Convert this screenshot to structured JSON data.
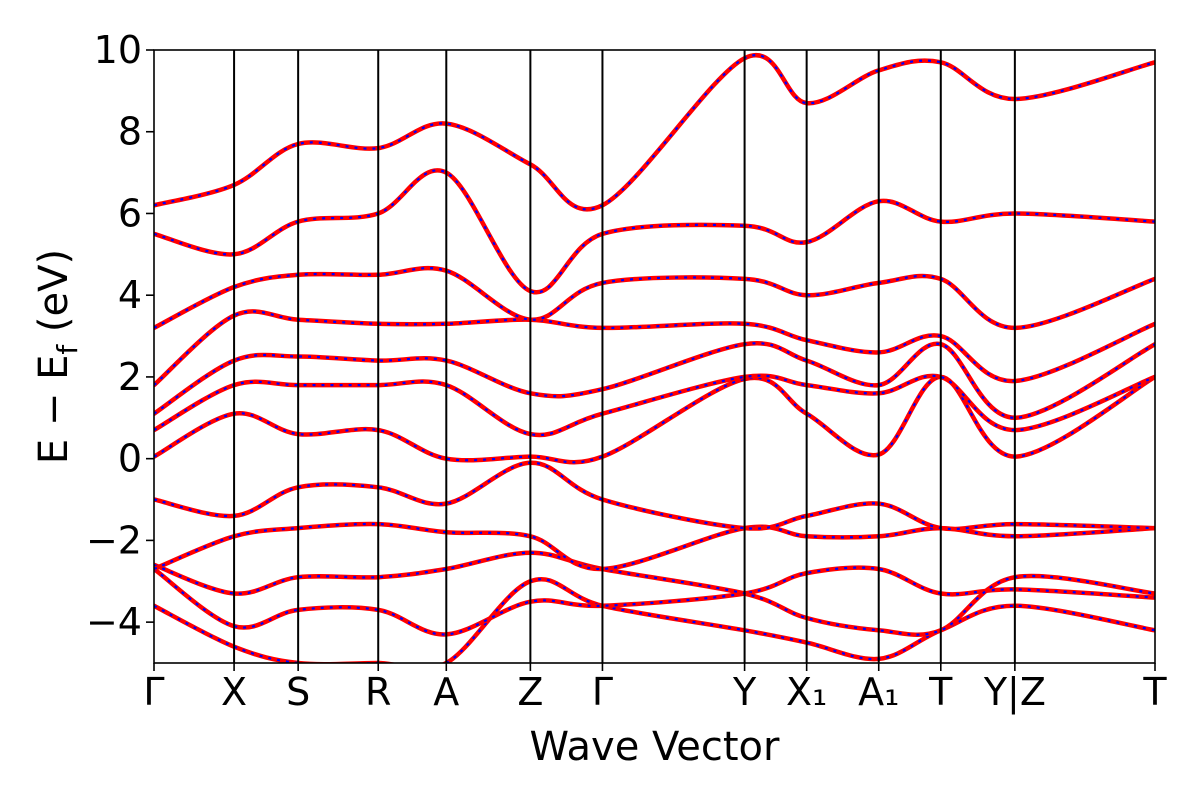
{
  "chart_data": {
    "type": "line",
    "title": "",
    "xlabel": "Wave Vector",
    "ylabel": "E − E_f (eV)",
    "ylabel_parts": {
      "base": "E − E",
      "sub": "f",
      "unit": " (eV)"
    },
    "ylim": [
      -5,
      10
    ],
    "yticks": [
      -4,
      -2,
      0,
      2,
      4,
      6,
      8,
      10
    ],
    "ytick_labels": [
      "−4",
      "−2",
      "0",
      "2",
      "4",
      "6",
      "8",
      "10"
    ],
    "grid": false,
    "high_symmetry_points": [
      {
        "label": "Γ",
        "x": 0.0
      },
      {
        "label": "X",
        "x": 0.4
      },
      {
        "label": "S",
        "x": 0.72
      },
      {
        "label": "R",
        "x": 1.12
      },
      {
        "label": "A",
        "x": 1.46
      },
      {
        "label": "Z",
        "x": 1.88
      },
      {
        "label": "Γ",
        "x": 2.24
      },
      {
        "label": "Y",
        "x": 2.95
      },
      {
        "label": "X₁",
        "x": 3.26
      },
      {
        "label": "A₁",
        "x": 3.62
      },
      {
        "label": "T",
        "x": 3.93
      },
      {
        "label": "Y|Z",
        "x": 4.3
      },
      {
        "label": "T",
        "x": 5.0
      }
    ],
    "series": [
      {
        "style": "solid",
        "color": "#ff0000",
        "bands": [
          {
            "x": [
              0,
              0.4,
              0.72,
              1.12,
              1.46,
              1.88,
              2.24,
              2.95,
              3.26,
              3.62,
              3.93,
              4.3,
              5.0
            ],
            "y": [
              -3.6,
              -4.6,
              -5.0,
              -5.0,
              -5.0,
              -3.0,
              -3.6,
              -4.2,
              -4.5,
              -4.9,
              -4.2,
              -3.6,
              -4.2
            ]
          },
          {
            "x": [
              0,
              0.4,
              0.72,
              1.12,
              1.46,
              1.88,
              2.24,
              2.95,
              3.26,
              3.62,
              3.93,
              4.3,
              5.0
            ],
            "y": [
              -2.7,
              -4.1,
              -3.7,
              -3.7,
              -4.3,
              -3.5,
              -3.6,
              -3.3,
              -2.8,
              -2.7,
              -3.3,
              -3.2,
              -3.4
            ]
          },
          {
            "x": [
              0,
              0.4,
              0.72,
              1.12,
              1.46,
              1.88,
              2.24,
              2.95,
              3.26,
              3.62,
              3.93,
              4.3,
              5.0
            ],
            "y": [
              -2.6,
              -3.3,
              -2.9,
              -2.9,
              -2.7,
              -2.3,
              -2.7,
              -3.3,
              -3.9,
              -4.2,
              -4.2,
              -2.9,
              -3.3
            ]
          },
          {
            "x": [
              0,
              0.4,
              0.72,
              1.12,
              1.46,
              1.88,
              2.24,
              2.95,
              3.26,
              3.62,
              3.93,
              4.3,
              5.0
            ],
            "y": [
              -2.7,
              -1.9,
              -1.7,
              -1.6,
              -1.8,
              -1.9,
              -2.7,
              -1.7,
              -1.9,
              -1.9,
              -1.7,
              -1.9,
              -1.7
            ]
          },
          {
            "x": [
              0,
              0.4,
              0.72,
              1.12,
              1.46,
              1.88,
              2.24,
              2.95,
              3.26,
              3.62,
              3.93,
              4.3,
              5.0
            ],
            "y": [
              -1.0,
              -1.4,
              -0.7,
              -0.7,
              -1.1,
              -0.1,
              -1.0,
              -1.7,
              -1.4,
              -1.1,
              -1.7,
              -1.6,
              -1.7
            ]
          },
          {
            "x": [
              0,
              0.4,
              0.72,
              1.12,
              1.46,
              1.88,
              2.24,
              2.95,
              3.26,
              3.62,
              3.93,
              4.3,
              5.0
            ],
            "y": [
              0.05,
              1.1,
              0.6,
              0.7,
              0.0,
              0.05,
              0.05,
              1.95,
              1.1,
              0.1,
              2.0,
              0.05,
              2.0
            ]
          },
          {
            "x": [
              0,
              0.4,
              0.72,
              1.12,
              1.46,
              1.88,
              2.24,
              2.95,
              3.26,
              3.62,
              3.93,
              4.3,
              5.0
            ],
            "y": [
              0.7,
              1.8,
              1.8,
              1.8,
              1.8,
              0.6,
              1.1,
              2.0,
              1.8,
              1.6,
              2.0,
              0.7,
              2.0
            ]
          },
          {
            "x": [
              0,
              0.4,
              0.72,
              1.12,
              1.46,
              1.88,
              2.24,
              2.95,
              3.26,
              3.62,
              3.93,
              4.3,
              5.0
            ],
            "y": [
              1.1,
              2.4,
              2.5,
              2.4,
              2.4,
              1.6,
              1.7,
              2.8,
              2.4,
              1.8,
              2.8,
              1.0,
              2.8
            ]
          },
          {
            "x": [
              0,
              0.4,
              0.72,
              1.12,
              1.46,
              1.88,
              2.24,
              2.95,
              3.26,
              3.62,
              3.93,
              4.3,
              5.0
            ],
            "y": [
              1.8,
              3.5,
              3.4,
              3.3,
              3.3,
              3.4,
              3.2,
              3.3,
              2.9,
              2.6,
              3.0,
              1.9,
              3.3
            ]
          },
          {
            "x": [
              0,
              0.4,
              0.72,
              1.12,
              1.46,
              1.88,
              2.24,
              2.95,
              3.26,
              3.62,
              3.93,
              4.3,
              5.0
            ],
            "y": [
              3.2,
              4.2,
              4.5,
              4.5,
              4.6,
              3.4,
              4.3,
              4.4,
              4.0,
              4.3,
              4.4,
              3.2,
              4.4
            ]
          },
          {
            "x": [
              0,
              0.4,
              0.72,
              1.12,
              1.46,
              1.88,
              2.24,
              2.95,
              3.26,
              3.62,
              3.93,
              4.3,
              5.0
            ],
            "y": [
              5.5,
              5.0,
              5.8,
              6.0,
              7.0,
              4.1,
              5.5,
              5.7,
              5.3,
              6.3,
              5.8,
              6.0,
              5.8
            ]
          },
          {
            "x": [
              0,
              0.4,
              0.72,
              1.12,
              1.46,
              1.88,
              2.24,
              2.95,
              3.26,
              3.62,
              3.93,
              4.3,
              5.0
            ],
            "y": [
              6.2,
              6.7,
              7.7,
              7.6,
              8.2,
              7.2,
              6.2,
              9.8,
              8.7,
              9.5,
              9.7,
              8.8,
              9.7
            ]
          }
        ]
      },
      {
        "style": "dashed",
        "color": "#0000ff",
        "same_as": "solid"
      }
    ]
  }
}
